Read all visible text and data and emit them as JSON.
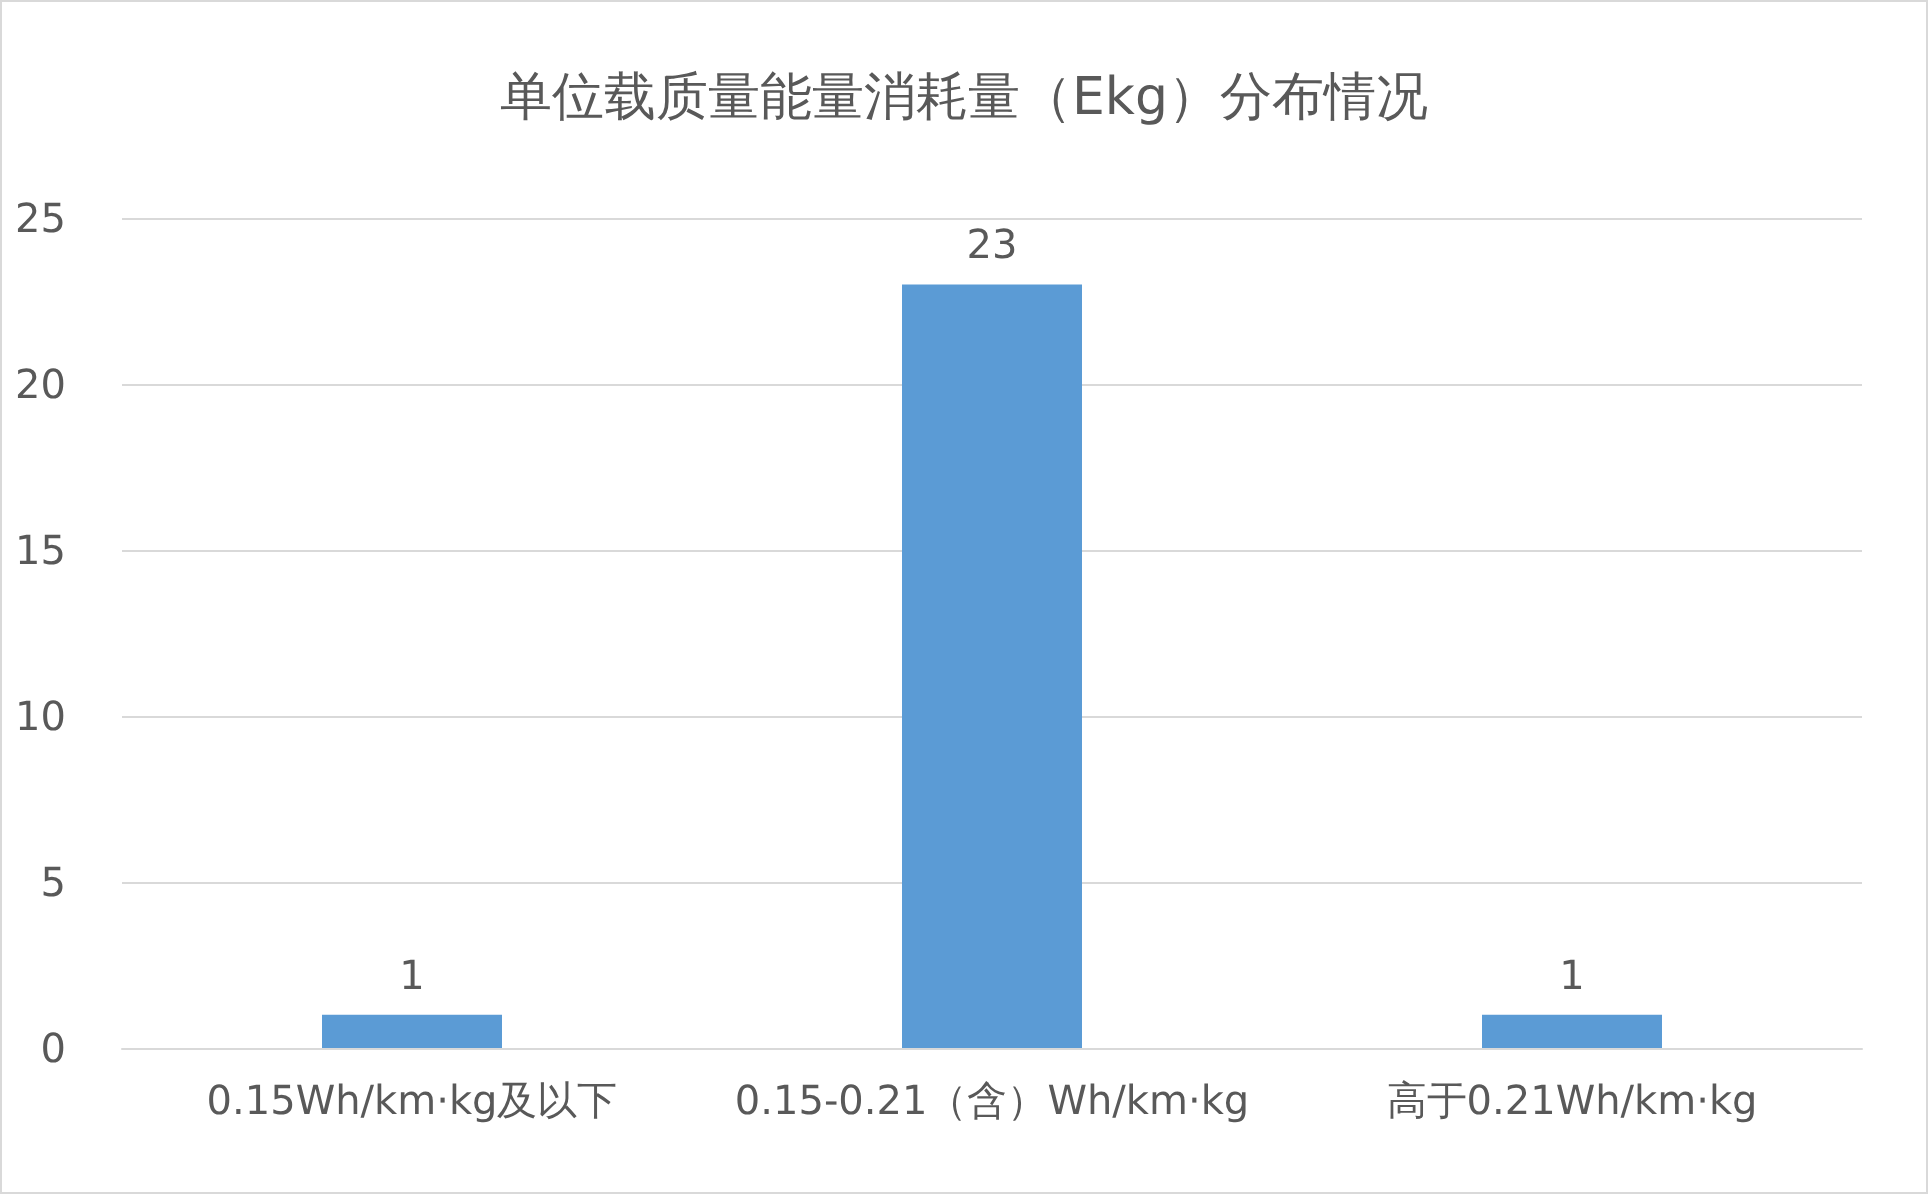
{
  "chart_data": {
    "type": "bar",
    "title": "单位载质量能量消耗量（Ekg）分布情况",
    "categories": [
      "0.15Wh/km·kg及以下",
      "0.15-0.21（含）Wh/km·kg",
      "高于0.21Wh/km·kg"
    ],
    "values": [
      1,
      23,
      1
    ],
    "color": "#5b9bd5",
    "ylim": [
      0,
      25
    ],
    "yticks": [
      0,
      5,
      10,
      15,
      20,
      25
    ],
    "grid": "y",
    "data_labels": true
  }
}
